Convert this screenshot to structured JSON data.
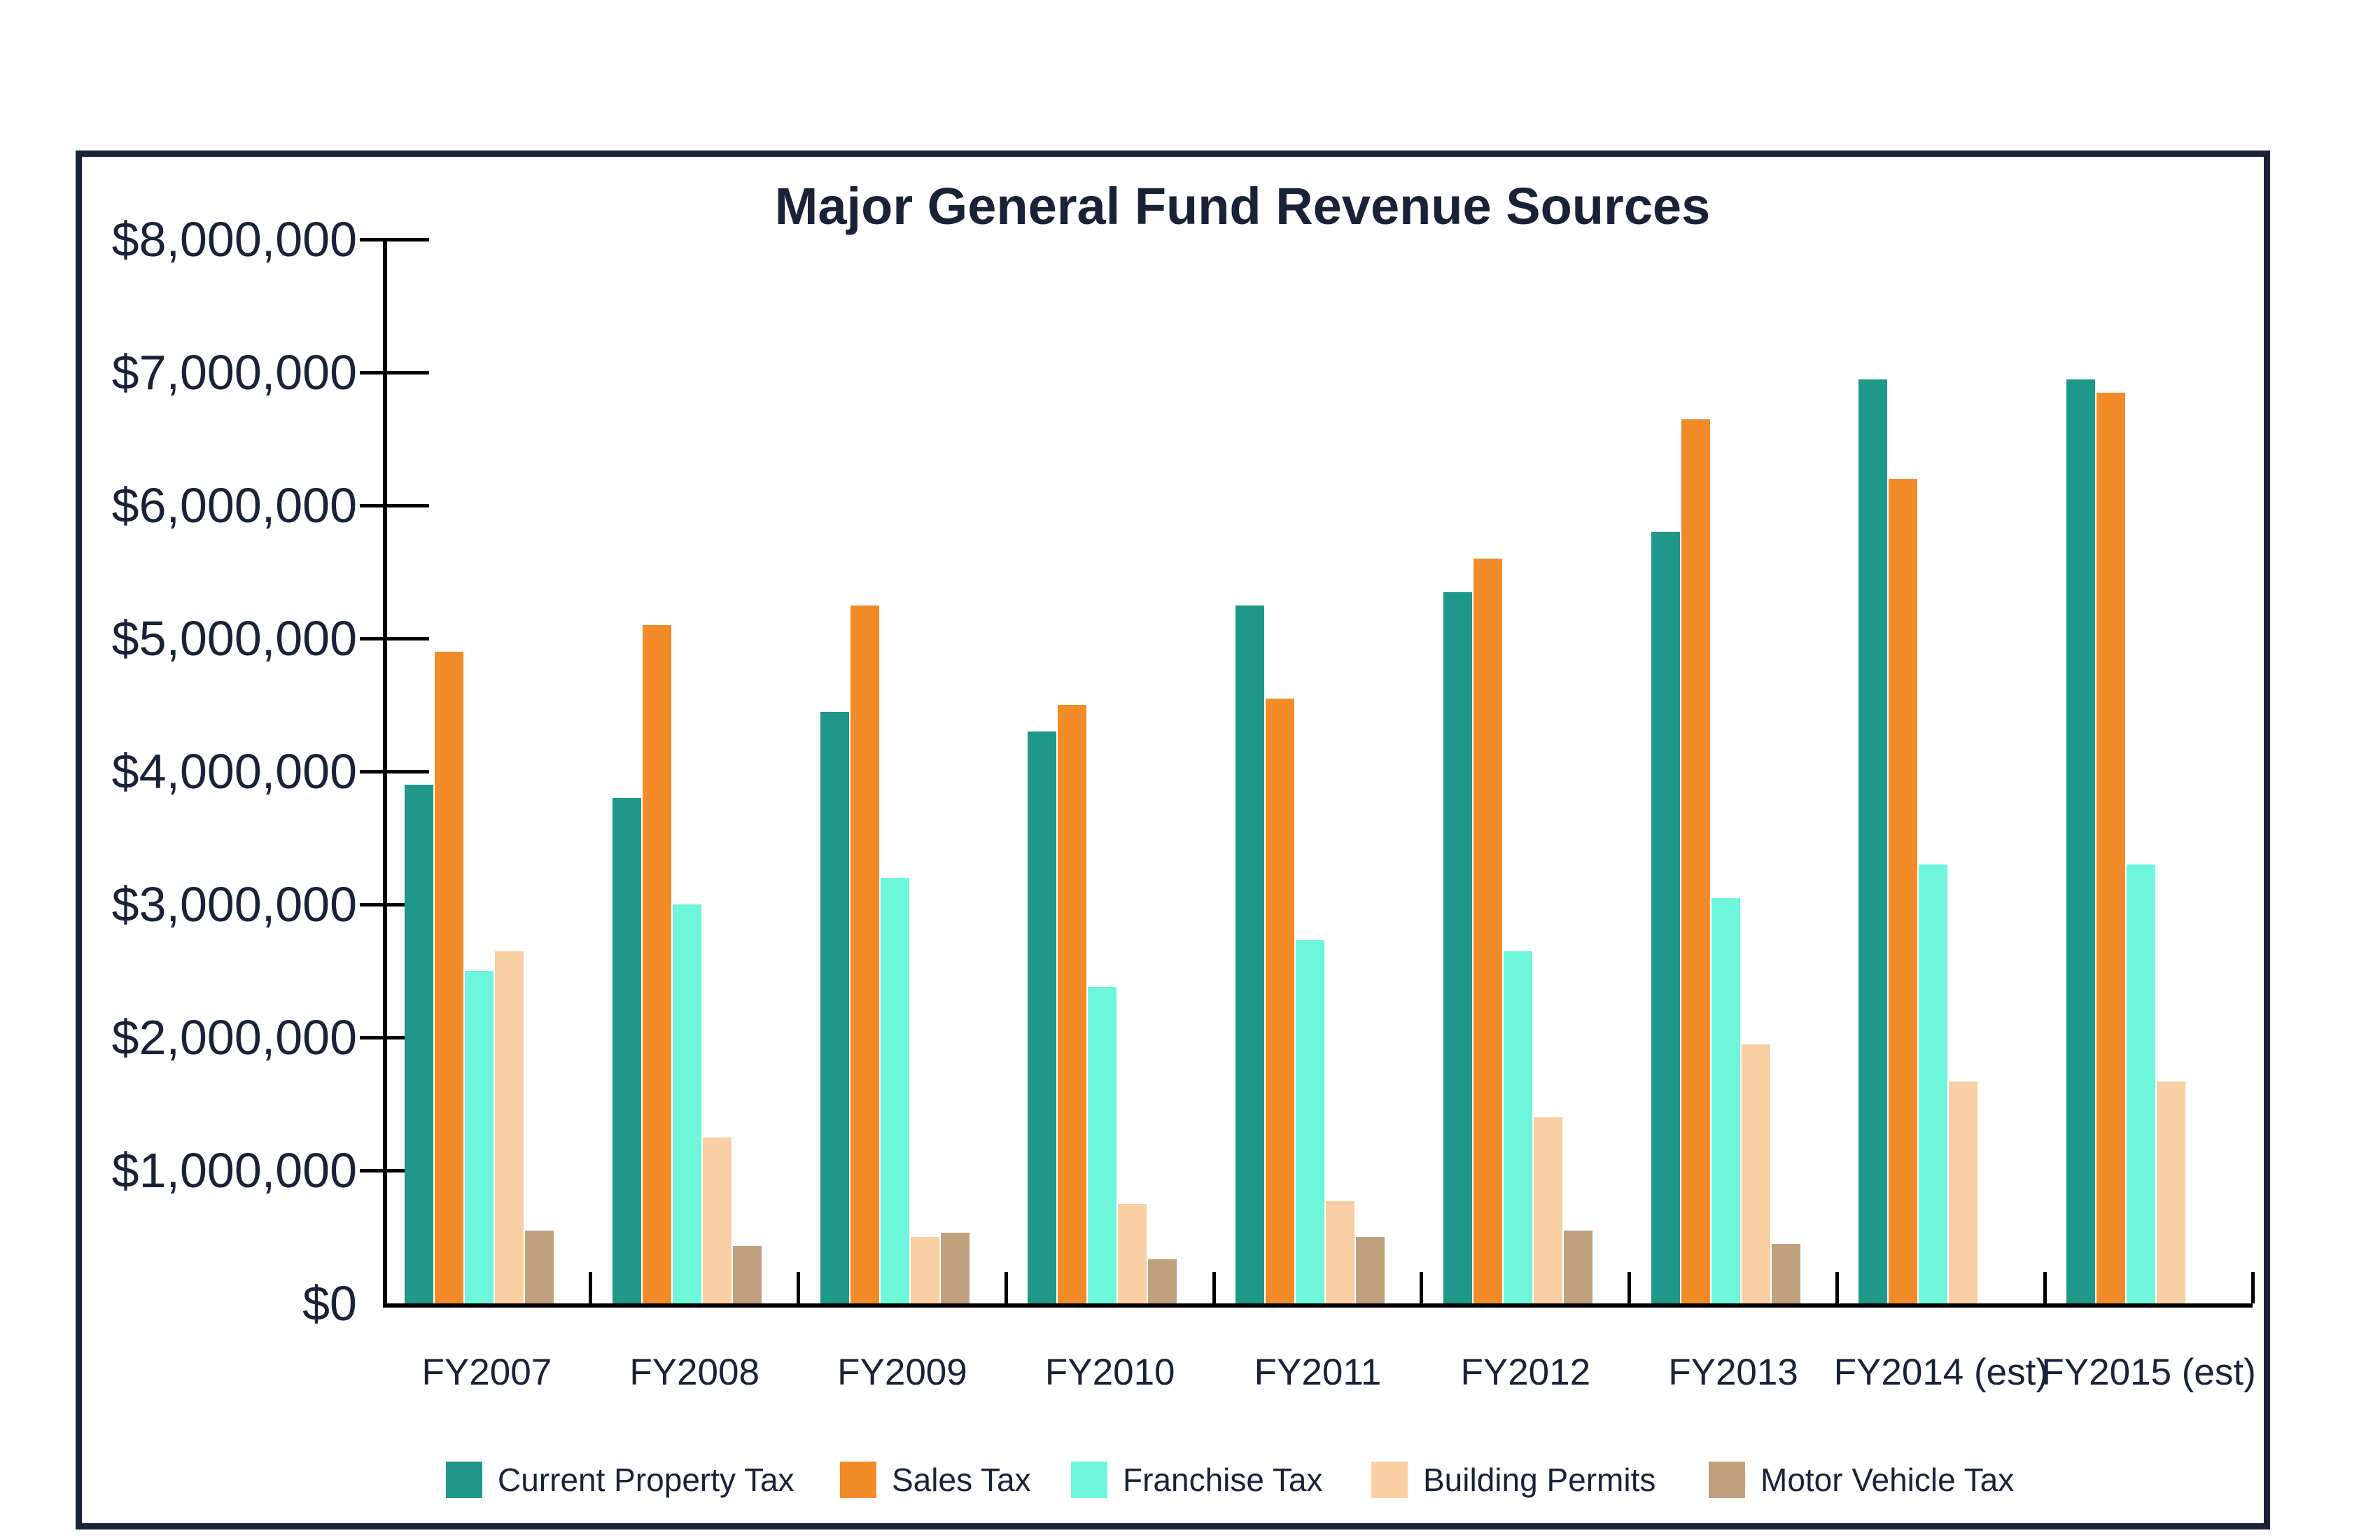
{
  "title": "Major General Fund Revenue Sources",
  "colors": {
    "text_navy": "#1A2238",
    "frame_border": "#1A2238",
    "axis_black": "#000000",
    "background": "#FFFFFF"
  },
  "y_axis": {
    "tick_labels": [
      "$8,000,000",
      "$7,000,000",
      "$6,000,000",
      "$5,000,000",
      "$4,000,000",
      "$3,000,000",
      "$2,000,000",
      "$1,000,000",
      "$0"
    ],
    "min": 0,
    "max": 8000000,
    "tick_interval": 1000000
  },
  "chart_data": {
    "type": "bar",
    "title": "Major General Fund Revenue Sources",
    "xlabel": "",
    "ylabel": "",
    "ylim": [
      0,
      8000000
    ],
    "y_tick_interval": 1000000,
    "grid": false,
    "legend_position": "bottom",
    "categories": [
      "FY2007",
      "FY2008",
      "FY2009",
      "FY2010",
      "FY2011",
      "FY2012",
      "FY2013",
      "FY2014 (est)",
      "FY2015 (est)"
    ],
    "series": [
      {
        "name": "Current Property Tax",
        "color": "#1F9789",
        "values": [
          3900000,
          3800000,
          4450000,
          4300000,
          5250000,
          5350000,
          5800000,
          6950000,
          6950000
        ]
      },
      {
        "name": "Sales Tax",
        "color": "#F18B28",
        "values": [
          4900000,
          5100000,
          5250000,
          4500000,
          4550000,
          5600000,
          6650000,
          6200000,
          6850000
        ]
      },
      {
        "name": "Franchise Tax",
        "color": "#6EF6DC",
        "values": [
          2500000,
          3000000,
          3200000,
          2380000,
          2730000,
          2650000,
          3050000,
          3300000,
          3300000
        ]
      },
      {
        "name": "Building Permits",
        "color": "#F8CFA2",
        "values": [
          2650000,
          1250000,
          500000,
          750000,
          770000,
          1400000,
          1950000,
          1670000,
          1670000
        ]
      },
      {
        "name": "Motor Vehicle Tax",
        "color": "#C1A07E",
        "values": [
          550000,
          430000,
          530000,
          330000,
          500000,
          550000,
          450000,
          0,
          0
        ]
      }
    ]
  },
  "legend": {
    "items": [
      {
        "label": "Current Property Tax",
        "color": "#1F9789"
      },
      {
        "label": "Sales Tax",
        "color": "#F18B28"
      },
      {
        "label": "Franchise Tax",
        "color": "#6EF6DC"
      },
      {
        "label": "Building Permits",
        "color": "#F8CFA2"
      },
      {
        "label": "Motor Vehicle Tax",
        "color": "#C1A07E"
      }
    ]
  }
}
